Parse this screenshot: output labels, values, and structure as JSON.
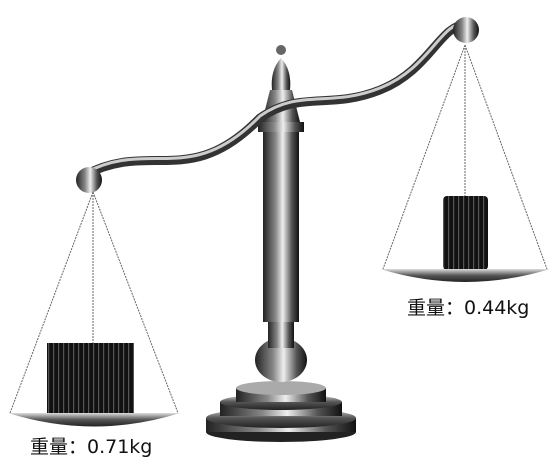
{
  "left_pan": {
    "label": "重量：0.71kg"
  },
  "right_pan": {
    "label": "重量：0.44kg"
  }
}
